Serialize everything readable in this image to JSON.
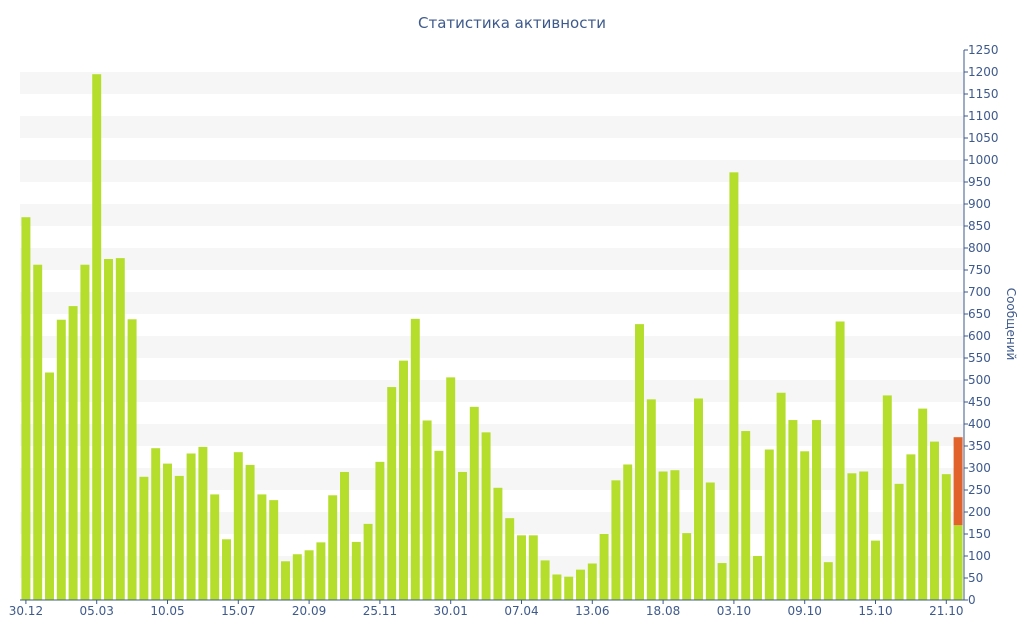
{
  "chart_data": {
    "type": "bar",
    "title": "Статистика активности",
    "ylabel": "Сообщений",
    "xlabel": "",
    "ylim": [
      0,
      1250
    ],
    "y_ticks": [
      0,
      50,
      100,
      150,
      200,
      250,
      300,
      350,
      400,
      450,
      500,
      550,
      600,
      650,
      700,
      750,
      800,
      850,
      900,
      950,
      1000,
      1050,
      1100,
      1150,
      1200,
      1250
    ],
    "x_tick_labels": [
      "30.12",
      "05.03",
      "10.05",
      "15.07",
      "20.09",
      "25.11",
      "30.01",
      "07.04",
      "13.06",
      "18.08",
      "03.10",
      "09.10",
      "15.10",
      "21.10"
    ],
    "x_tick_bar_index": [
      0,
      6,
      12,
      18,
      24,
      30,
      36,
      42,
      48,
      54,
      60,
      66,
      72,
      78
    ],
    "grid": true,
    "legend": "none",
    "colors": {
      "bar": "#b5de2c",
      "highlight_bar": "#e2622b",
      "band": "#f6f6f6",
      "axis": "#3e5a8c"
    },
    "values": [
      870,
      762,
      517,
      637,
      668,
      762,
      1195,
      775,
      777,
      638,
      280,
      345,
      310,
      282,
      333,
      348,
      240,
      138,
      336,
      307,
      240,
      227,
      88,
      104,
      113,
      131,
      238,
      291,
      132,
      173,
      314,
      484,
      544,
      639,
      408,
      339,
      506,
      291,
      439,
      381,
      255,
      186,
      147,
      147,
      90,
      58,
      53,
      69,
      83,
      150,
      272,
      308,
      627,
      456,
      292,
      295,
      152,
      458,
      267,
      84,
      972,
      384,
      100,
      342,
      471,
      409,
      338,
      409,
      86,
      633,
      288,
      292,
      135,
      465,
      264,
      331,
      435,
      360,
      286,
      370
    ],
    "highlight_last": {
      "total": 370,
      "base": 170
    }
  }
}
